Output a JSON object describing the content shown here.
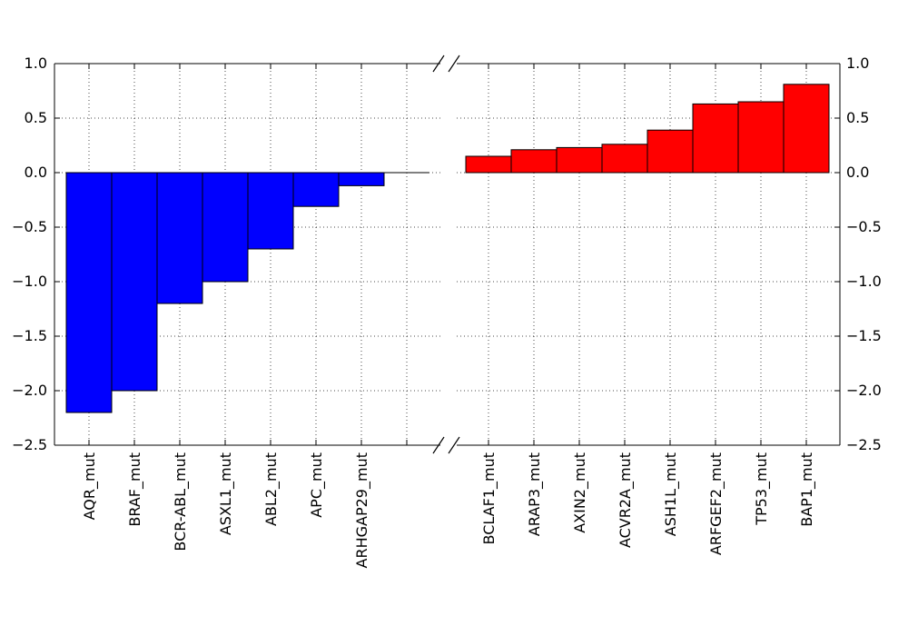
{
  "chart_data": {
    "type": "bar",
    "title": "",
    "xlabel": "",
    "ylabel": "",
    "ylim": [
      -2.5,
      1.0
    ],
    "yticks": [
      1.0,
      0.5,
      0.0,
      -0.5,
      -1.0,
      -1.5,
      -2.0,
      -2.5
    ],
    "ytick_labels": [
      "1.0",
      "0.5",
      "0.0",
      "−0.5",
      "−1.0",
      "−1.5",
      "−2.0",
      "−2.5"
    ],
    "grid": true,
    "broken_x_axis": true,
    "panels": [
      {
        "name": "left",
        "y_axis_side": "left",
        "color": "#0000ff",
        "categories": [
          "AQR_mut",
          "BRAF_mut",
          "BCR-ABL_mut",
          "ASXL1_mut",
          "ABL2_mut",
          "APC_mut",
          "ARHGAP29_mut",
          ""
        ],
        "values": [
          -2.2,
          -2.0,
          -1.2,
          -1.0,
          -0.7,
          -0.31,
          -0.12,
          0.0
        ]
      },
      {
        "name": "right",
        "y_axis_side": "right",
        "color": "#ff0000",
        "categories": [
          "BCLAF1_mut",
          "ARAP3_mut",
          "AXIN2_mut",
          "ACVR2A_mut",
          "ASH1L_mut",
          "ARFGEF2_mut",
          "TP53_mut",
          "BAP1_mut"
        ],
        "values": [
          0.15,
          0.21,
          0.23,
          0.26,
          0.39,
          0.63,
          0.65,
          0.81
        ]
      }
    ]
  }
}
